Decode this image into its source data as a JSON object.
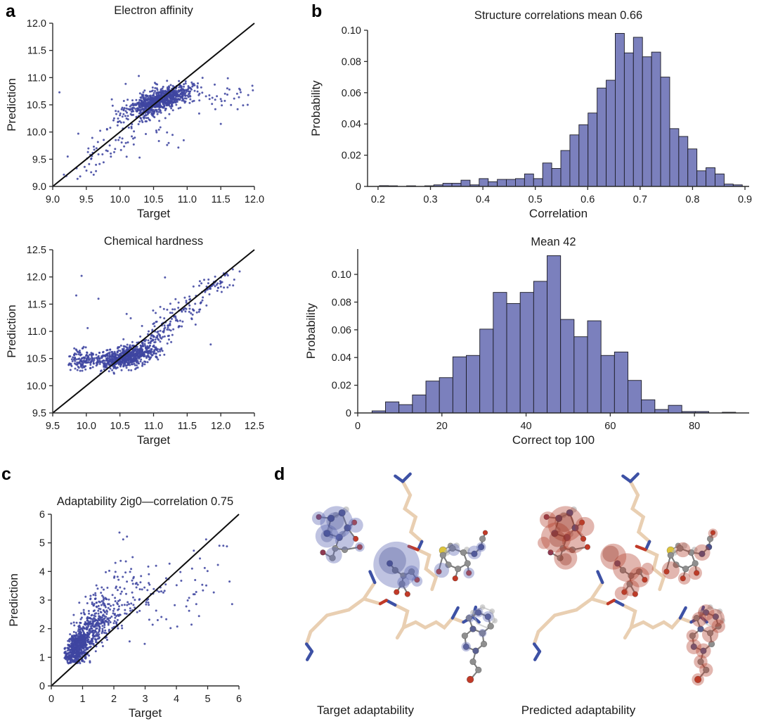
{
  "figure": {
    "panels": {
      "a": "a",
      "b": "b",
      "c": "c",
      "d": "d"
    },
    "captions": {
      "target": "Target adaptability",
      "predicted": "Predicted adaptability"
    }
  },
  "colors": {
    "dot": "#3f46a0",
    "line": "#0d0d0d",
    "axis": "#2b2b2b",
    "text": "#1c1c1c",
    "hist_fill": "#7b80bd",
    "hist_edge": "#1a1a24",
    "sphere_blue": "#5e68b4",
    "sphere_red": "#b4402c",
    "stick_wheat": "#e9cfb2",
    "atom_nitrogen": "#3d51a5",
    "atom_oxygen": "#c13a28",
    "atom_sulfur": "#ddc43d",
    "atom_carbon": "#8f8f8f"
  },
  "chart_data": [
    {
      "id": "electron-affinity",
      "type": "scatter",
      "title": "Electron affinity",
      "xlabel": "Target",
      "ylabel": "Prediction",
      "xlim": [
        9,
        12
      ],
      "ylim": [
        9,
        12
      ],
      "xticks": [
        9,
        9.5,
        10,
        10.5,
        11,
        11.5,
        12
      ],
      "xtick_labels": [
        "9.0",
        "9.5",
        "10.0",
        "10.5",
        "11.0",
        "11.5",
        "12.0"
      ],
      "yticks": [
        9,
        9.5,
        10,
        10.5,
        11,
        11.5,
        12
      ],
      "ytick_labels": [
        "9.0",
        "9.5",
        "10.0",
        "10.5",
        "11.0",
        "11.5",
        "12.0"
      ],
      "identity_line": [
        9,
        9,
        12,
        12
      ],
      "grid": false,
      "clusters": [
        {
          "n": 750,
          "cx": 10.62,
          "cy": 10.6,
          "sx": 0.21,
          "sy": 0.125,
          "rho": 0.6,
          "clip": [
            9.6,
            11.6,
            9.8,
            11.05
          ]
        },
        {
          "n": 110,
          "cx": 10.3,
          "cy": 10.42,
          "sx": 0.22,
          "sy": 0.16,
          "rho": 0.55,
          "clip": [
            9.7,
            11.0,
            9.8,
            11.0
          ]
        },
        {
          "n": 55,
          "cx": 9.62,
          "cy": 9.55,
          "sx": 0.3,
          "sy": 0.28,
          "rho": 0.8,
          "clip": [
            9.05,
            10.4,
            9.1,
            10.5
          ]
        },
        {
          "n": 32,
          "cx": 11.55,
          "cy": 10.68,
          "sx": 0.28,
          "sy": 0.14,
          "rho": 0,
          "clip": [
            11.0,
            12.0,
            10.1,
            11.0
          ]
        },
        {
          "n": 22,
          "cx": 10.55,
          "cy": 10.0,
          "sx": 0.3,
          "sy": 0.22,
          "rho": 0.2,
          "clip": [
            9.9,
            11.2,
            9.5,
            10.5
          ]
        },
        {
          "n": 12,
          "cx": 10.05,
          "cy": 10.35,
          "sx": 0.18,
          "sy": 0.25,
          "rho": 0,
          "clip": [
            9.7,
            10.4,
            9.9,
            10.9
          ]
        }
      ],
      "points": [
        [
          9.1,
          10.73
        ],
        [
          11.97,
          10.85
        ],
        [
          11.5,
          10.15
        ],
        [
          10.28,
          11.03
        ],
        [
          9.38,
          9.97
        ],
        [
          11.9,
          10.5
        ],
        [
          11.75,
          10.42
        ]
      ]
    },
    {
      "id": "chemical-hardness",
      "type": "scatter",
      "title": "Chemical hardness",
      "xlabel": "Target",
      "ylabel": "Prediction",
      "xlim": [
        9.5,
        12.5
      ],
      "ylim": [
        9.5,
        12.5
      ],
      "xticks": [
        9.5,
        10,
        10.5,
        11,
        11.5,
        12,
        12.5
      ],
      "xtick_labels": [
        "9.5",
        "10.0",
        "10.5",
        "11.0",
        "11.5",
        "12.0",
        "12.5"
      ],
      "yticks": [
        9.5,
        10,
        10.5,
        11,
        11.5,
        12,
        12.5
      ],
      "ytick_labels": [
        "9.5",
        "10.0",
        "10.5",
        "11.0",
        "11.5",
        "12.0",
        "12.5"
      ],
      "identity_line": [
        9.5,
        9.5,
        12.5,
        12.5
      ],
      "grid": false,
      "clusters": [
        {
          "n": 520,
          "cx": 10.52,
          "cy": 10.5,
          "sx": 0.2,
          "sy": 0.1,
          "rho": 0.35,
          "clip": [
            10.05,
            11.1,
            10.22,
            10.85
          ]
        },
        {
          "n": 130,
          "cx": 9.93,
          "cy": 10.47,
          "sx": 0.12,
          "sy": 0.1,
          "rho": 0.1,
          "clip": [
            9.72,
            10.2,
            10.25,
            10.75
          ]
        },
        {
          "n": 160,
          "cx": 10.78,
          "cy": 10.62,
          "sx": 0.18,
          "sy": 0.13,
          "rho": 0.55,
          "clip": [
            10.3,
            11.2,
            10.25,
            11.0
          ]
        },
        {
          "n": 90,
          "cx": 11.05,
          "cy": 10.95,
          "sx": 0.22,
          "sy": 0.22,
          "rho": 0.65,
          "clip": [
            10.5,
            11.6,
            10.4,
            11.6
          ]
        },
        {
          "n": 70,
          "cx": 11.45,
          "cy": 11.35,
          "sx": 0.25,
          "sy": 0.25,
          "rho": 0.75,
          "clip": [
            10.9,
            12.1,
            10.7,
            12.05
          ]
        },
        {
          "n": 45,
          "cx": 11.88,
          "cy": 11.88,
          "sx": 0.16,
          "sy": 0.12,
          "rho": 0.5,
          "clip": [
            11.5,
            12.3,
            11.5,
            12.15
          ]
        }
      ],
      "points": [
        [
          9.93,
          12.02
        ],
        [
          9.85,
          11.66
        ],
        [
          10.18,
          11.6
        ],
        [
          10.02,
          11.06
        ],
        [
          11.17,
          11.99
        ],
        [
          11.85,
          10.76
        ],
        [
          10.6,
          11.32
        ],
        [
          10.66,
          11.24
        ],
        [
          11.1,
          11.45
        ],
        [
          12.28,
          12.1
        ],
        [
          12.2,
          11.95
        ]
      ]
    },
    {
      "id": "correlation-hist",
      "type": "histogram",
      "title": "Structure correlations mean 0.66",
      "xlabel": "Correlation",
      "ylabel": "Probability",
      "xlim": [
        0.18,
        0.908
      ],
      "ylim": [
        0,
        0.1
      ],
      "bin_start": 0.2025,
      "bin_width": 0.01731,
      "values": [
        0.0005,
        0.0004,
        0,
        0.0004,
        0,
        0.0004,
        0.001,
        0.002,
        0.002,
        0.004,
        0.001,
        0.005,
        0.003,
        0.0045,
        0.0045,
        0.005,
        0.008,
        0.005,
        0.015,
        0.0115,
        0.023,
        0.033,
        0.0395,
        0.047,
        0.063,
        0.068,
        0.098,
        0.0855,
        0.0955,
        0.083,
        0.086,
        0.07,
        0.037,
        0.032,
        0.024,
        0.01,
        0.012,
        0.008,
        0.0015,
        0.001
      ],
      "xticks": [
        0.2,
        0.3,
        0.4,
        0.5,
        0.6,
        0.7,
        0.8,
        0.9
      ],
      "xtick_labels": [
        "0.2",
        "0.3",
        "0.4",
        "0.5",
        "0.6",
        "0.7",
        "0.8",
        "0.9"
      ],
      "yticks": [
        0,
        0.02,
        0.04,
        0.06,
        0.08,
        0.1
      ],
      "ytick_labels": [
        "0",
        "0.02",
        "0.04",
        "0.06",
        "0.08",
        "0.10"
      ],
      "grid": false
    },
    {
      "id": "top100-hist",
      "type": "histogram",
      "title": "Mean 42",
      "xlabel": "Correct top 100",
      "ylabel": "Probability",
      "xlim": [
        0,
        93
      ],
      "ylim": [
        0,
        0.1183
      ],
      "bin_start": 3.4,
      "bin_width": 3.2,
      "values": [
        0.0015,
        0.008,
        0.006,
        0.013,
        0.023,
        0.0255,
        0.0405,
        0.0415,
        0.0605,
        0.087,
        0.079,
        0.087,
        0.095,
        0.1135,
        0.0675,
        0.055,
        0.0665,
        0.0415,
        0.044,
        0.0235,
        0.0095,
        0.0025,
        0.0055,
        0.001,
        0.001,
        0,
        0.0005
      ],
      "xticks": [
        0,
        20,
        40,
        60,
        80
      ],
      "xtick_labels": [
        "0",
        "20",
        "40",
        "60",
        "80"
      ],
      "yticks": [
        0,
        0.02,
        0.04,
        0.06,
        0.08,
        0.1
      ],
      "ytick_labels": [
        "0",
        "0.02",
        "0.04",
        "0.06",
        "0.08",
        "0.10"
      ],
      "grid": false
    },
    {
      "id": "adaptability",
      "type": "scatter",
      "title": "Adaptability 2ig0—correlation 0.75",
      "xlabel": "Target",
      "ylabel": "Prediction",
      "xlim": [
        0,
        6
      ],
      "ylim": [
        0,
        6
      ],
      "xticks": [
        0,
        1,
        2,
        3,
        4,
        5,
        6
      ],
      "xtick_labels": [
        "0",
        "1",
        "2",
        "3",
        "4",
        "5",
        "6"
      ],
      "yticks": [
        0,
        1,
        2,
        3,
        4,
        5,
        6
      ],
      "ytick_labels": [
        "0",
        "1",
        "2",
        "3",
        "4",
        "5",
        "6"
      ],
      "identity_line": [
        0,
        0,
        6,
        6
      ],
      "grid": false,
      "clusters": [
        {
          "n": 520,
          "cx": 0.8,
          "cy": 1.3,
          "sx": 0.22,
          "sy": 0.3,
          "rho": 0.45,
          "clip": [
            0.42,
            2.0,
            0.78,
            2.6
          ]
        },
        {
          "n": 300,
          "cx": 1.25,
          "cy": 1.95,
          "sx": 0.35,
          "sy": 0.45,
          "rho": 0.5,
          "clip": [
            0.45,
            2.6,
            0.8,
            3.6
          ]
        },
        {
          "n": 120,
          "cx": 1.8,
          "cy": 2.7,
          "sx": 0.45,
          "sy": 0.55,
          "rho": 0.4,
          "clip": [
            0.6,
            3.2,
            0.9,
            4.2
          ]
        },
        {
          "n": 60,
          "cx": 2.6,
          "cy": 3.0,
          "sx": 0.7,
          "sy": 0.65,
          "rho": 0.3,
          "clip": [
            1.2,
            4.6,
            1.2,
            4.4
          ]
        },
        {
          "n": 30,
          "cx": 4.0,
          "cy": 3.0,
          "sx": 0.8,
          "sy": 0.7,
          "rho": 0.1,
          "clip": [
            2.6,
            5.8,
            1.8,
            4.3
          ]
        },
        {
          "n": 8,
          "cx": 5.1,
          "cy": 4.2,
          "sx": 0.35,
          "sy": 0.6,
          "rho": 0,
          "clip": [
            4.5,
            5.8,
            3.2,
            5.2
          ]
        }
      ],
      "points": [
        [
          2.18,
          5.36
        ],
        [
          2.42,
          5.22
        ],
        [
          2.3,
          5.12
        ],
        [
          4.95,
          5.12
        ],
        [
          5.5,
          4.9
        ],
        [
          3.1,
          4.17
        ],
        [
          3.35,
          4.2
        ],
        [
          4.5,
          4.1
        ],
        [
          5.7,
          3.65
        ],
        [
          4.6,
          3.7
        ],
        [
          2.05,
          4.3
        ],
        [
          2.6,
          4.5
        ]
      ]
    }
  ]
}
